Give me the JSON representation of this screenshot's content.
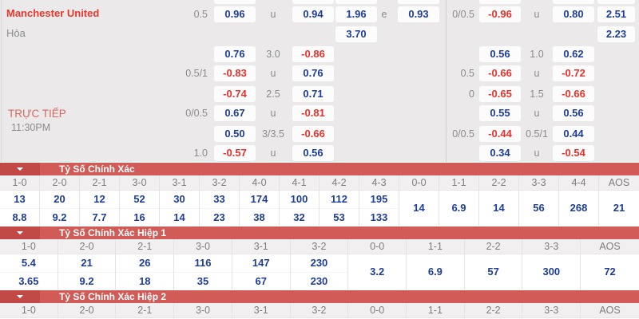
{
  "colors": {
    "panel_bg": "#ebe9e9",
    "section_bar_red": "#d05b57",
    "section_bar_dark_red": "#c24a46",
    "odds_blue": "#1e3d99",
    "odds_red": "#e8312b",
    "team_red": "#e8372d",
    "live_red": "#d4695f",
    "label_gray": "#8c8c8c"
  },
  "match": {
    "home_team": "Manchester United",
    "draw_label": "Hòa",
    "live_label": "TRỰC TIẾP",
    "time": "11:30PM"
  },
  "odds_rows": [
    {
      "h1": "0.5",
      "o1": "0.96",
      "m1": "u",
      "o2": "0.94",
      "x12": "1.96",
      "e": "e",
      "o3": "0.93",
      "h2": "0/0.5",
      "o4": "-0.96",
      "m2": "u",
      "o5": "0.80",
      "last": "2.51"
    },
    {
      "x12": "3.70",
      "last": "2.23"
    },
    {
      "o1": "0.76",
      "m1": "3.0",
      "o2": "-0.86",
      "o4": "0.56",
      "m2": "1.0",
      "o5": "0.62"
    },
    {
      "h1": "0.5/1",
      "o1": "-0.83",
      "m1": "u",
      "o2": "0.76",
      "h2": "0.5",
      "o4": "-0.66",
      "m2": "u",
      "o5": "-0.72"
    },
    {
      "o1": "-0.74",
      "m1": "2.5",
      "o2": "0.71",
      "h2": "0",
      "o4": "-0.65",
      "m2": "1.5",
      "o5": "-0.66"
    },
    {
      "h1": "0/0.5",
      "o1": "0.67",
      "m1": "u",
      "o2": "-0.81",
      "o4": "0.55",
      "m2": "u",
      "o5": "0.56"
    },
    {
      "o1": "0.50",
      "m1": "3/3.5",
      "o2": "-0.66",
      "h2": "0/0.5",
      "o4": "-0.44",
      "m2": "0.5/1",
      "o5": "0.44"
    },
    {
      "h1": "1.0",
      "o1": "-0.57",
      "m1": "u",
      "o2": "0.56",
      "o4": "0.34",
      "m2": "u",
      "o5": "-0.54"
    }
  ],
  "sections": [
    {
      "title": "Tỷ Số Chính Xác",
      "columns": [
        "1-0",
        "2-0",
        "2-1",
        "3-0",
        "3-1",
        "3-2",
        "4-0",
        "4-1",
        "4-2",
        "4-3",
        "0-0",
        "1-1",
        "2-2",
        "3-3",
        "4-4",
        "AOS"
      ],
      "odds": [
        [
          "13",
          "8.8"
        ],
        [
          "20",
          "9.2"
        ],
        [
          "12",
          "7.7"
        ],
        [
          "52",
          "16"
        ],
        [
          "30",
          "14"
        ],
        [
          "33",
          "23"
        ],
        [
          "174",
          "38"
        ],
        [
          "100",
          "32"
        ],
        [
          "112",
          "53"
        ],
        [
          "195",
          "133"
        ],
        [
          "14"
        ],
        [
          "6.9"
        ],
        [
          "14"
        ],
        [
          "56"
        ],
        [
          "268"
        ],
        [
          "21"
        ]
      ]
    },
    {
      "title": "Tỷ Số Chính Xác Hiệp 1",
      "columns": [
        "1-0",
        "2-0",
        "2-1",
        "3-0",
        "3-1",
        "3-2",
        "0-0",
        "1-1",
        "2-2",
        "3-3",
        "AOS"
      ],
      "odds": [
        [
          "5.4",
          "3.65"
        ],
        [
          "21",
          "9.2"
        ],
        [
          "26",
          "18"
        ],
        [
          "116",
          "35"
        ],
        [
          "147",
          "67"
        ],
        [
          "230",
          "230"
        ],
        [
          "3.2"
        ],
        [
          "6.9"
        ],
        [
          "57"
        ],
        [
          "300"
        ],
        [
          "72"
        ]
      ]
    },
    {
      "title": "Tỷ Số Chính Xác Hiệp 2",
      "columns": [
        "1-0",
        "2-0",
        "2-1",
        "3-0",
        "3-1",
        "3-2",
        "0-0",
        "1-1",
        "2-2",
        "3-3",
        "AOS"
      ],
      "odds": []
    }
  ]
}
